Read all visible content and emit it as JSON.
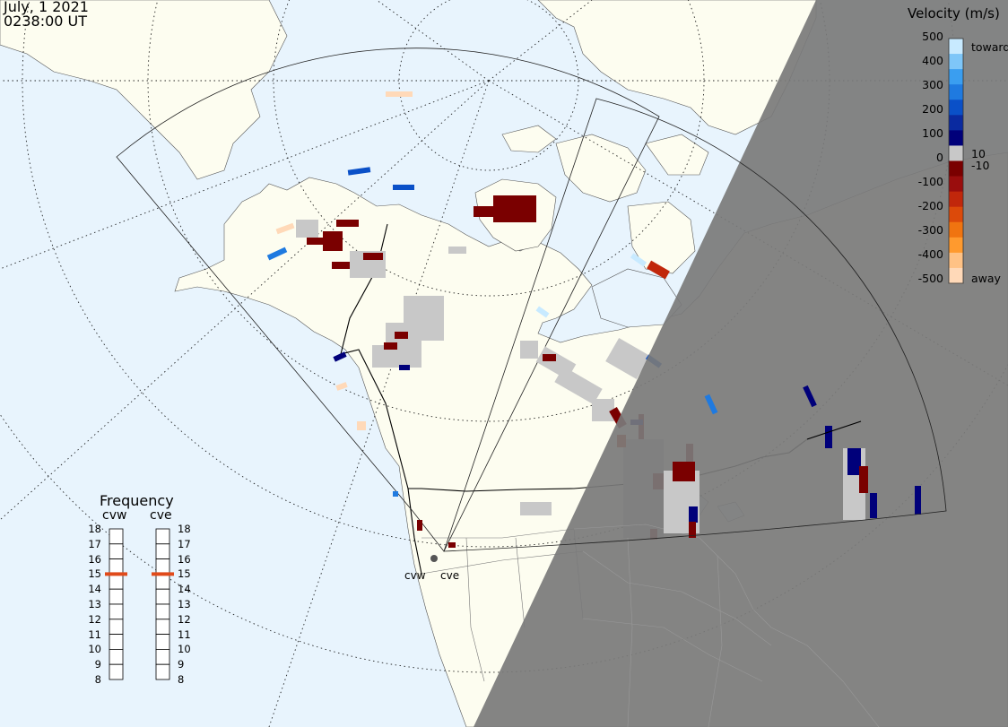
{
  "header": {
    "date": "July, 1 2021",
    "time": "0238:00 UT"
  },
  "colorbar": {
    "title": "Velocity (m/s)",
    "ticks": [
      "500",
      "400",
      "300",
      "200",
      "100",
      "10",
      "0",
      "-10",
      "-100",
      "-200",
      "-300",
      "-400",
      "-500"
    ],
    "toward_label": "toward",
    "away_label": "away",
    "colors": [
      "#ffd9b8",
      "#ffc285",
      "#ff9a2e",
      "#f07410",
      "#dc4a0a",
      "#c1270b",
      "#9a0d0d",
      "#7a0000",
      "#c8c8c8",
      "#00007a",
      "#0a2aa0",
      "#0a50c8",
      "#1f7ae0",
      "#3a9ef0",
      "#7ec6f8",
      "#c8eaff"
    ]
  },
  "frequency": {
    "title": "Frequency",
    "radars": [
      "cvw",
      "cve"
    ],
    "scale": [
      "18",
      "17",
      "16",
      "15",
      "14",
      "13",
      "12",
      "11",
      "10",
      "9",
      "8"
    ],
    "radar_values_mhz": [
      15,
      15
    ],
    "marker_color": "#e04a1a"
  },
  "map": {
    "radar_sites": [
      "cvw",
      "cve"
    ],
    "colors": {
      "ocean": "#e8f4fd",
      "land": "#fdfdf0",
      "night": "#7a7a7a",
      "lowvel": "#c8c8c8"
    }
  }
}
